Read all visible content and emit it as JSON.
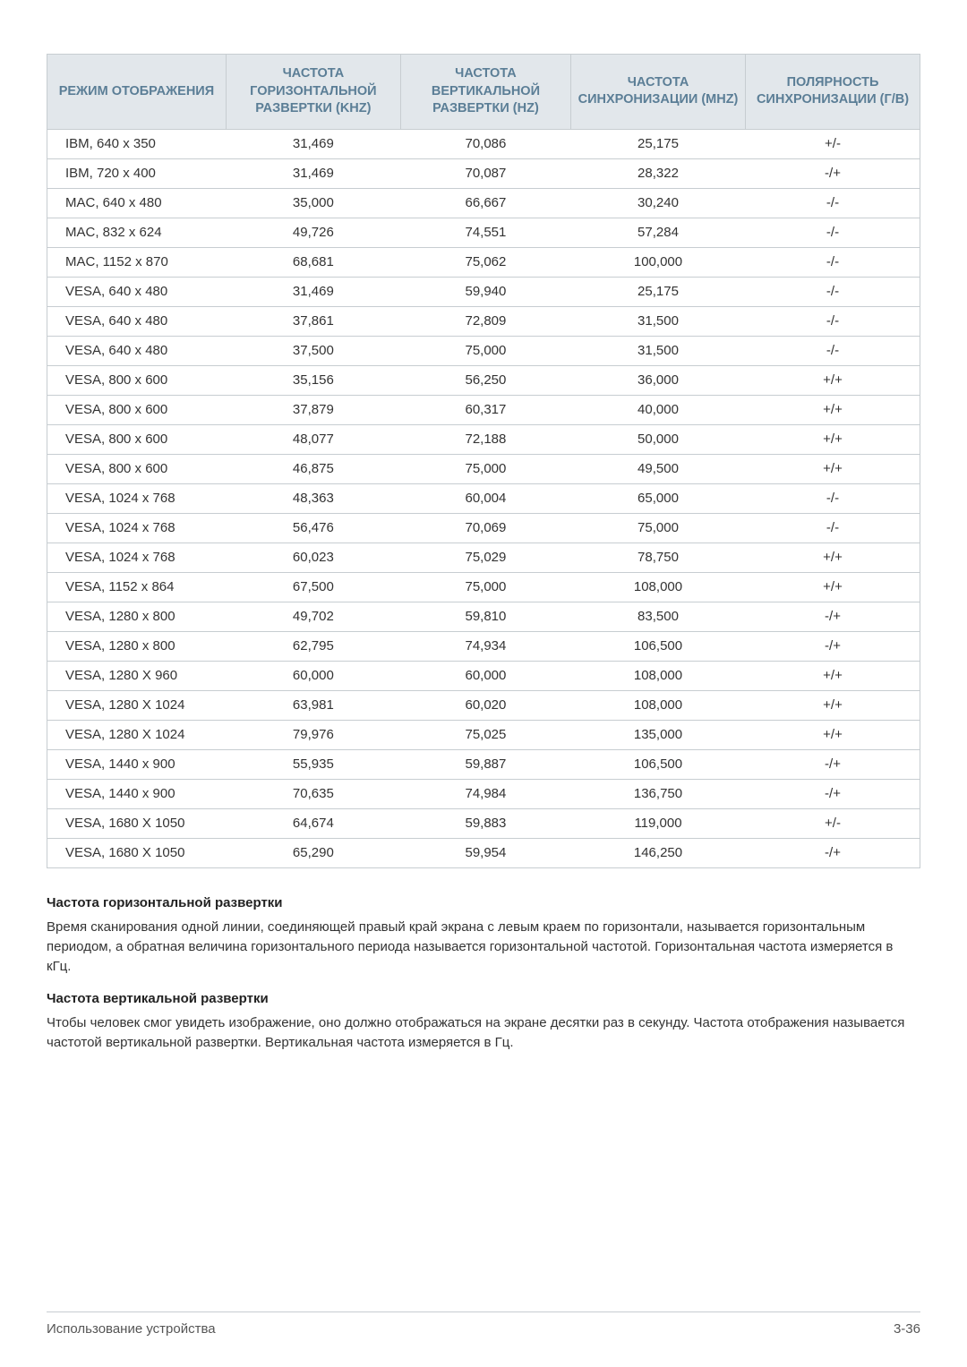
{
  "table": {
    "headers": [
      "РЕЖИМ ОТОБРАЖЕНИЯ",
      "ЧАСТОТА ГОРИЗОНТАЛЬНОЙ РАЗВЕРТКИ (KHZ)",
      "ЧАСТОТА ВЕРТИКАЛЬНОЙ РАЗВЕРТКИ (HZ)",
      "ЧАСТОТА СИНХРОНИЗАЦИИ (MHZ)",
      "ПОЛЯРНОСТЬ СИНХРОНИЗАЦИИ (Г/В)"
    ],
    "rows": [
      [
        "IBM, 640 x 350",
        "31,469",
        "70,086",
        "25,175",
        "+/-"
      ],
      [
        "IBM, 720 x 400",
        "31,469",
        "70,087",
        "28,322",
        "-/+"
      ],
      [
        "MAC, 640 x 480",
        "35,000",
        "66,667",
        "30,240",
        "-/-"
      ],
      [
        "MAC, 832 x 624",
        "49,726",
        "74,551",
        "57,284",
        "-/-"
      ],
      [
        "MAC, 1152 x 870",
        "68,681",
        "75,062",
        "100,000",
        "-/-"
      ],
      [
        "VESA, 640 x 480",
        "31,469",
        "59,940",
        "25,175",
        "-/-"
      ],
      [
        "VESA, 640 x 480",
        "37,861",
        "72,809",
        "31,500",
        "-/-"
      ],
      [
        "VESA, 640 x 480",
        "37,500",
        "75,000",
        "31,500",
        "-/-"
      ],
      [
        "VESA, 800 x 600",
        "35,156",
        "56,250",
        "36,000",
        "+/+"
      ],
      [
        "VESA, 800 x 600",
        "37,879",
        "60,317",
        "40,000",
        "+/+"
      ],
      [
        "VESA, 800 x 600",
        "48,077",
        "72,188",
        "50,000",
        "+/+"
      ],
      [
        "VESA, 800 x 600",
        "46,875",
        "75,000",
        "49,500",
        "+/+"
      ],
      [
        "VESA, 1024 x 768",
        "48,363",
        "60,004",
        "65,000",
        "-/-"
      ],
      [
        "VESA, 1024 x 768",
        "56,476",
        "70,069",
        "75,000",
        "-/-"
      ],
      [
        "VESA, 1024 x 768",
        "60,023",
        "75,029",
        "78,750",
        "+/+"
      ],
      [
        "VESA, 1152 x 864",
        "67,500",
        "75,000",
        "108,000",
        "+/+"
      ],
      [
        "VESA, 1280 x 800",
        "49,702",
        "59,810",
        "83,500",
        "-/+"
      ],
      [
        "VESA, 1280 x 800",
        "62,795",
        "74,934",
        "106,500",
        "-/+"
      ],
      [
        "VESA, 1280 X 960",
        "60,000",
        "60,000",
        "108,000",
        "+/+"
      ],
      [
        "VESA, 1280 X 1024",
        "63,981",
        "60,020",
        "108,000",
        "+/+"
      ],
      [
        "VESA, 1280 X 1024",
        "79,976",
        "75,025",
        "135,000",
        "+/+"
      ],
      [
        "VESA, 1440 x 900",
        "55,935",
        "59,887",
        "106,500",
        "-/+"
      ],
      [
        "VESA, 1440 x 900",
        "70,635",
        "74,984",
        "136,750",
        "-/+"
      ],
      [
        "VESA, 1680 X 1050",
        "64,674",
        "59,883",
        "119,000",
        "+/-"
      ],
      [
        "VESA, 1680 X 1050",
        "65,290",
        "59,954",
        "146,250",
        "-/+"
      ]
    ],
    "col_widths": [
      "20.5%",
      "20%",
      "19.5%",
      "20%",
      "20%"
    ]
  },
  "prose": {
    "h1": "Частота горизонтальной развертки",
    "p1": "Время сканирования одной линии, соединяющей правый край экрана с левым краем по горизонтали, называется горизонтальным периодом, а обратная величина горизонтального периода называется горизонтальной частотой. Горизонтальная частота измеряется в кГц.",
    "h2": "Частота вертикальной развертки",
    "p2": "Чтобы человек смог увидеть изображение, оно должно отображаться на экране десятки раз в секунду. Частота отображения называется частотой вертикальной развертки. Вертикальная частота измеряется в Гц."
  },
  "footer": {
    "left": "Использование устройства",
    "right": "3-36"
  },
  "styles": {
    "header_bg": "#e2e7eb",
    "header_fg": "#5b7e96",
    "border": "#c7cdd1"
  }
}
